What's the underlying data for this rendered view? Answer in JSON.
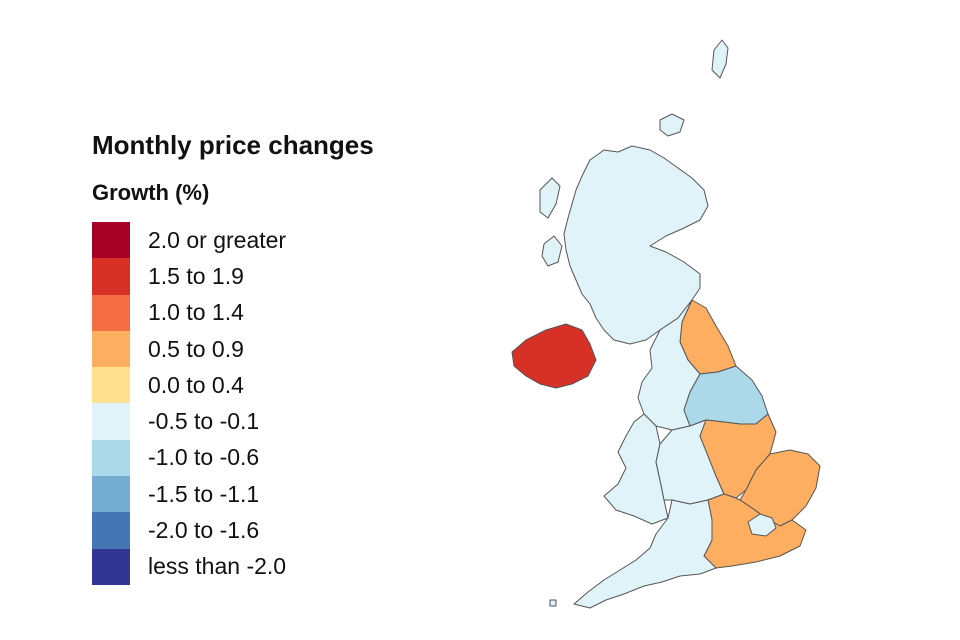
{
  "title": "Monthly price changes",
  "subtitle": "Growth (%)",
  "legend": [
    {
      "label": "2.0 or greater",
      "color": "#a50026"
    },
    {
      "label": "1.5 to 1.9",
      "color": "#d73027"
    },
    {
      "label": "1.0 to 1.4",
      "color": "#f46d43"
    },
    {
      "label": "0.5 to 0.9",
      "color": "#fdae61"
    },
    {
      "label": "0.0 to 0.4",
      "color": "#fee090"
    },
    {
      "label": "-0.5 to -0.1",
      "color": "#e0f3f8"
    },
    {
      "label": "-1.0 to -0.6",
      "color": "#abd9e9"
    },
    {
      "label": "-1.5 to -1.1",
      "color": "#74add1"
    },
    {
      "label": "-2.0 to -1.6",
      "color": "#4575b4"
    },
    {
      "label": "less than -2.0",
      "color": "#313695"
    }
  ],
  "regions": [
    {
      "name": "Scotland",
      "band": "-0.5 to -0.1",
      "color": "#e0f3f8"
    },
    {
      "name": "Northern Ireland",
      "band": "1.5 to 1.9",
      "color": "#d73027"
    },
    {
      "name": "North East",
      "band": "0.5 to 0.9",
      "color": "#fdae61"
    },
    {
      "name": "North West",
      "band": "-0.5 to -0.1",
      "color": "#e0f3f8"
    },
    {
      "name": "Yorkshire and The Humber",
      "band": "-1.0 to -0.6",
      "color": "#abd9e9"
    },
    {
      "name": "Wales",
      "band": "-0.5 to -0.1",
      "color": "#e0f3f8"
    },
    {
      "name": "West Midlands",
      "band": "-0.5 to -0.1",
      "color": "#e0f3f8"
    },
    {
      "name": "East Midlands",
      "band": "0.5 to 0.9",
      "color": "#fdae61"
    },
    {
      "name": "East of England",
      "band": "0.5 to 0.9",
      "color": "#fdae61"
    },
    {
      "name": "London",
      "band": "-0.5 to -0.1",
      "color": "#e0f3f8"
    },
    {
      "name": "South East",
      "band": "0.5 to 0.9",
      "color": "#fdae61"
    },
    {
      "name": "South West",
      "band": "-0.5 to -0.1",
      "color": "#e0f3f8"
    }
  ]
}
